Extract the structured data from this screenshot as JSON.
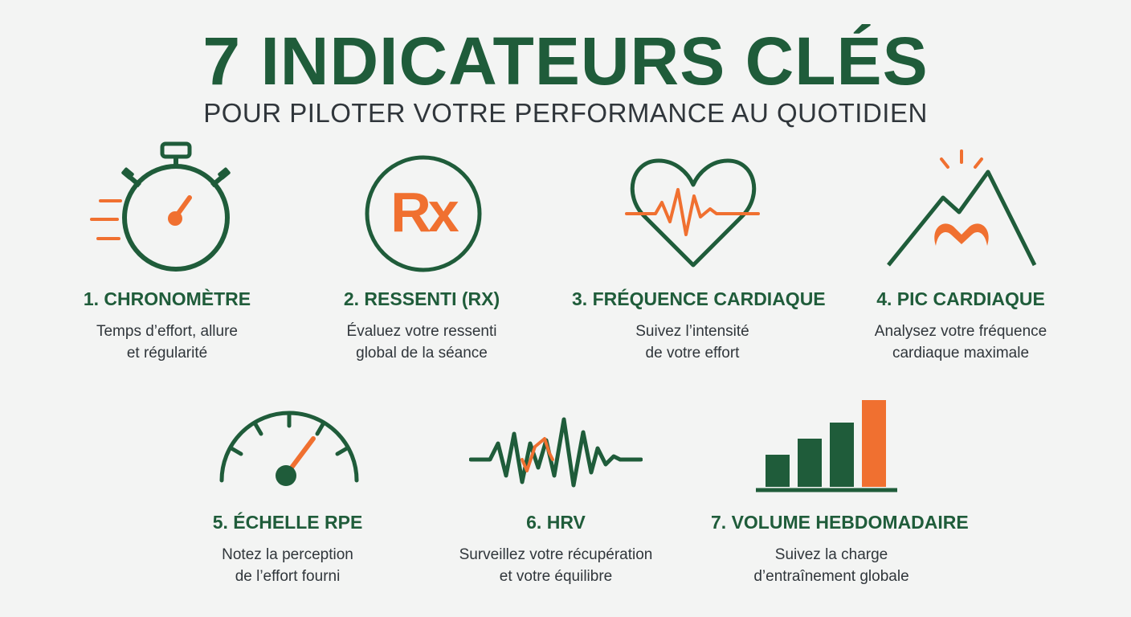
{
  "header": {
    "title": "7 INDICATEURS CLÉS",
    "subtitle": "POUR PILOTER VOTRE PERFORMANCE AU QUOTIDIEN"
  },
  "colors": {
    "green": "#1f5c3a",
    "orange": "#f07030",
    "text": "#30363b",
    "background": "#f3f4f3"
  },
  "cards": [
    {
      "icon": "stopwatch-icon",
      "title": "1. CHRONOMÈTRE",
      "desc_line1": "Temps d’effort, allure",
      "desc_line2": "et régularité"
    },
    {
      "icon": "rx-icon",
      "rx_label": "Rx",
      "title": "2. RESSENTI (RX)",
      "desc_line1": "Évaluez votre ressenti",
      "desc_line2": "global de la séance"
    },
    {
      "icon": "heart-pulse-icon",
      "title": "3. FRÉQUENCE CARDIAQUE",
      "desc_line1": "Suivez l’intensité",
      "desc_line2": "de votre effort"
    },
    {
      "icon": "mountain-heart-icon",
      "title": "4. PIC CARDIAQUE",
      "desc_line1": "Analysez votre fréquence",
      "desc_line2": "cardiaque maximale"
    },
    {
      "icon": "gauge-icon",
      "title": "5. ÉCHELLE RPE",
      "desc_line1": "Notez la perception",
      "desc_line2": "de l’effort fourni"
    },
    {
      "icon": "waveform-icon",
      "title": "6. HRV",
      "desc_line1": "Surveillez votre récupération",
      "desc_line2": "et votre équilibre"
    },
    {
      "icon": "bar-chart-icon",
      "title": "7. VOLUME HEBDOMADAIRE",
      "desc_line1": "Suivez la charge",
      "desc_line2": "d’entraînement globale"
    }
  ]
}
